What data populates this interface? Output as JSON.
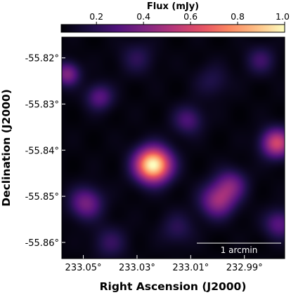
{
  "chart_data": {
    "type": "heatmap",
    "title": "",
    "xlabel": "Right Ascension (J2000)",
    "ylabel": "Declination (J2000)",
    "colorbar": {
      "label": "Flux (mJy)",
      "ticks": [
        "0.2",
        "0.4",
        "0.6",
        "0.8",
        "1.0"
      ],
      "tick_values": [
        0.2,
        0.4,
        0.6,
        0.8,
        1.0
      ],
      "range": [
        0.05,
        1.0
      ],
      "colormap": "magma",
      "position": "top"
    },
    "x_ticks": [
      "233.05°",
      "233.03°",
      "233.01°",
      "232.99°"
    ],
    "x_tick_values": [
      233.05,
      233.03,
      233.01,
      232.99
    ],
    "xlim": [
      233.058,
      232.975
    ],
    "y_ticks": [
      "-55.82°",
      "-55.83°",
      "-55.84°",
      "-55.85°",
      "-55.86°"
    ],
    "y_tick_values": [
      -55.82,
      -55.83,
      -55.84,
      -55.85,
      -55.86
    ],
    "ylim": [
      -55.8635,
      -55.8155
    ],
    "scale_bar": {
      "label": "1 arcmin",
      "length_arcmin": 1
    },
    "sources": [
      {
        "ra": 233.024,
        "dec": -55.8432,
        "flux": 1.0,
        "sigma_deg": 0.0026
      },
      {
        "ra": 232.978,
        "dec": -55.8385,
        "flux": 0.55,
        "sigma_deg": 0.0022
      },
      {
        "ra": 233.0,
        "dec": -55.851,
        "flux": 0.4,
        "sigma_deg": 0.0025
      },
      {
        "ra": 232.995,
        "dec": -55.8475,
        "flux": 0.3,
        "sigma_deg": 0.0023
      },
      {
        "ra": 233.049,
        "dec": -55.8515,
        "flux": 0.33,
        "sigma_deg": 0.0024
      },
      {
        "ra": 233.056,
        "dec": -55.8235,
        "flux": 0.36,
        "sigma_deg": 0.0018
      },
      {
        "ra": 233.044,
        "dec": -55.8285,
        "flux": 0.26,
        "sigma_deg": 0.002
      },
      {
        "ra": 232.977,
        "dec": -55.856,
        "flux": 0.26,
        "sigma_deg": 0.0022
      },
      {
        "ra": 233.011,
        "dec": -55.8335,
        "flux": 0.22,
        "sigma_deg": 0.0022
      },
      {
        "ra": 232.984,
        "dec": -55.8205,
        "flux": 0.18,
        "sigma_deg": 0.0022
      },
      {
        "ra": 233.03,
        "dec": -55.82,
        "flux": 0.14,
        "sigma_deg": 0.0025
      },
      {
        "ra": 233.04,
        "dec": -55.86,
        "flux": 0.16,
        "sigma_deg": 0.0025
      },
      {
        "ra": 233.015,
        "dec": -55.857,
        "flux": 0.14,
        "sigma_deg": 0.0025
      },
      {
        "ra": 233.002,
        "dec": -55.825,
        "flux": 0.12,
        "sigma_deg": 0.0025
      }
    ]
  }
}
